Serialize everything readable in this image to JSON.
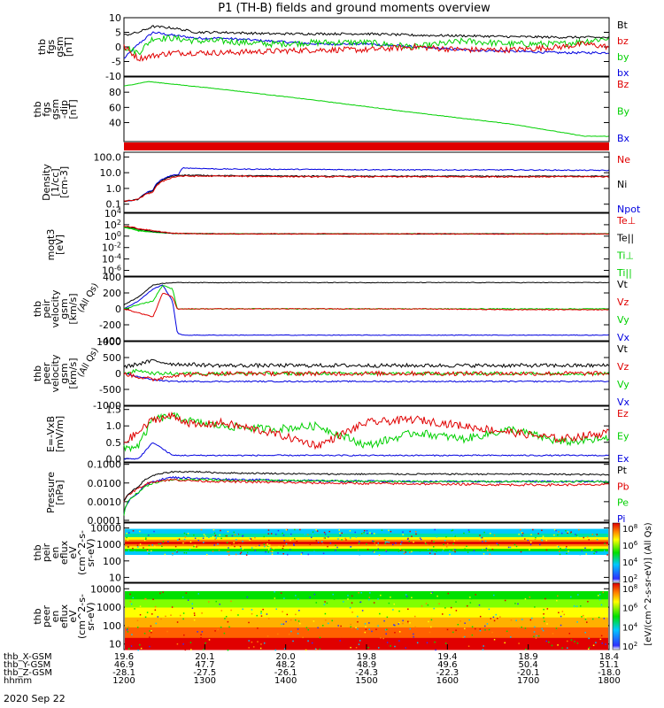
{
  "title": "P1  (TH-B) fields and ground moments overview",
  "date_label": "2020 Sep 22",
  "colors": {
    "black": "#000000",
    "red": "#e00000",
    "green": "#00d000",
    "blue": "#0000e0"
  },
  "chart_data": [
    {
      "type": "line",
      "ylabel_lines": [
        "thb",
        "fgs",
        "gsm",
        "[nT]"
      ],
      "ylim": [
        -10,
        10
      ],
      "yscale": "linear",
      "yticks": [
        {
          "v": 10,
          "label": "10"
        },
        {
          "v": 5,
          "label": "5"
        },
        {
          "v": 0,
          "label": "0"
        },
        {
          "v": -5,
          "label": "-5"
        },
        {
          "v": -10,
          "label": "-10"
        }
      ],
      "x": [
        0,
        0.03,
        0.06,
        0.1,
        0.15,
        0.2,
        0.3,
        0.4,
        0.5,
        0.6,
        0.7,
        0.8,
        0.9,
        0.95,
        1.0
      ],
      "series": [
        {
          "name": "Bt",
          "color": "#000000",
          "noise": 0.4,
          "values": [
            4,
            5,
            7,
            6.5,
            5,
            5,
            4.5,
            4.5,
            4.5,
            4,
            3.8,
            3.5,
            3.3,
            3.3,
            3.2
          ]
        },
        {
          "name": "bz",
          "color": "#e00000",
          "noise": 1.0,
          "values": [
            0,
            -4,
            -3,
            -2,
            -2,
            -2,
            -1.5,
            -1,
            -1,
            0,
            -1,
            -1,
            0,
            1,
            0
          ]
        },
        {
          "name": "by",
          "color": "#00d000",
          "noise": 1.1,
          "values": [
            0,
            -2,
            3,
            3,
            2,
            2,
            1,
            1.5,
            1.5,
            0,
            2,
            1,
            1,
            2,
            3
          ]
        },
        {
          "name": "bx",
          "color": "#0000e0",
          "noise": 0.4,
          "values": [
            -4,
            1,
            5,
            4,
            3,
            3,
            2,
            1,
            1,
            0,
            -1,
            -1.5,
            -2,
            -2,
            -2
          ]
        }
      ]
    },
    {
      "type": "line",
      "ylabel_lines": [
        "thb",
        "fgs",
        "gsm",
        "-dip",
        "[nT]"
      ],
      "ylim": [
        15,
        100
      ],
      "yscale": "linear",
      "yticks": [
        {
          "v": 80,
          "label": "80"
        },
        {
          "v": 60,
          "label": "60"
        },
        {
          "v": 40,
          "label": "40"
        }
      ],
      "x": [
        0,
        0.05,
        0.2,
        0.4,
        0.6,
        0.8,
        0.95,
        1.0
      ],
      "series": [
        {
          "name": "Bz",
          "color": "#e00000",
          "noise": 0,
          "values": [
            null,
            null,
            null,
            null,
            null,
            null,
            null,
            null
          ],
          "legend_only": true
        },
        {
          "name": "By",
          "color": "#00d000",
          "noise": 0.3,
          "values": [
            88,
            94,
            84,
            69,
            53,
            38,
            22,
            22
          ]
        },
        {
          "name": "Bx",
          "color": "#0000e0",
          "noise": 0,
          "values": [
            null,
            null,
            null,
            null,
            null,
            null,
            null,
            null
          ],
          "legend_only": true
        }
      ]
    },
    {
      "type": "line",
      "ylabel_lines": [
        "Density",
        "[1/cc]",
        "[cm-3]"
      ],
      "ylim": [
        0.03,
        200
      ],
      "yscale": "log",
      "yticks": [
        {
          "v": 100,
          "label": "100.0"
        },
        {
          "v": 10,
          "label": "10.0"
        },
        {
          "v": 1,
          "label": "1.0"
        },
        {
          "v": 0.1,
          "label": "0.1"
        }
      ],
      "x": [
        0,
        0.03,
        0.06,
        0.1,
        0.113,
        0.12,
        0.2,
        0.4,
        0.6,
        0.8,
        1.0
      ],
      "series": [
        {
          "name": "Ne",
          "color": "#e00000",
          "noise": 0.04,
          "values": [
            0.15,
            0.2,
            0.6,
            5,
            6,
            6,
            6,
            5.5,
            5.5,
            5.5,
            5.5
          ]
        },
        {
          "name": "Ni",
          "color": "#000000",
          "noise": 0.03,
          "values": [
            0.15,
            0.2,
            0.7,
            6,
            7,
            7,
            6.5,
            6,
            6,
            6,
            6
          ]
        },
        {
          "name": "Npot",
          "color": "#0000e0",
          "noise": 0.03,
          "values": [
            0.15,
            0.2,
            0.8,
            7,
            7,
            20,
            17,
            16,
            15,
            15,
            14
          ]
        }
      ]
    },
    {
      "type": "line",
      "ylabel_lines": [
        "moqt3",
        "[eV]"
      ],
      "ylim": [
        1e-07,
        10000
      ],
      "yscale": "log",
      "yticks": [
        {
          "v": 10000,
          "label": "10^4"
        },
        {
          "v": 100,
          "label": "10^2"
        },
        {
          "v": 1,
          "label": "10^0"
        },
        {
          "v": 0.01,
          "label": "10^-2"
        },
        {
          "v": 0.0001,
          "label": "10^-4"
        },
        {
          "v": 1e-06,
          "label": "10^-6"
        }
      ],
      "x": [
        0,
        0.03,
        0.06,
        0.1,
        0.2,
        0.5,
        1.0
      ],
      "series": [
        {
          "name": "Te⊥",
          "color": "#e00000",
          "noise": 0.08,
          "values": [
            60,
            20,
            8,
            3,
            2.5,
            2.5,
            2.5
          ]
        },
        {
          "name": "Te||",
          "color": "#000000",
          "noise": 0.05,
          "values": [
            50,
            15,
            6,
            3,
            2.5,
            2.5,
            2.5
          ]
        },
        {
          "name": "Ti⊥",
          "color": "#00d000",
          "noise": 0.05,
          "values": [
            40,
            10,
            5,
            3,
            2.5,
            2.5,
            2.5
          ]
        },
        {
          "name": "Ti||",
          "color": "#00d000",
          "noise": 0.05,
          "values": [
            30,
            8,
            5,
            3,
            2.5,
            2.5,
            2.5
          ]
        }
      ]
    },
    {
      "type": "line",
      "ylabel_lines": [
        "thb",
        "peir",
        "velocity",
        "gsm",
        "[km/s]"
      ],
      "extra_label": "(All Qs)",
      "ylim": [
        -400,
        400
      ],
      "yscale": "linear",
      "yticks": [
        {
          "v": 400,
          "label": "400"
        },
        {
          "v": 200,
          "label": "200"
        },
        {
          "v": 0,
          "label": "0"
        },
        {
          "v": -200,
          "label": "-200"
        },
        {
          "v": -400,
          "label": "-400"
        }
      ],
      "x": [
        0,
        0.03,
        0.06,
        0.08,
        0.1,
        0.11,
        0.12,
        0.2,
        0.4,
        0.6,
        0.8,
        1.0
      ],
      "series": [
        {
          "name": "Vt",
          "color": "#000000",
          "noise": 4,
          "values": [
            50,
            150,
            300,
            320,
            330,
            330,
            330,
            330,
            330,
            330,
            330,
            330
          ]
        },
        {
          "name": "Vz",
          "color": "#e00000",
          "noise": 5,
          "values": [
            0,
            -50,
            -100,
            200,
            150,
            0,
            0,
            0,
            0,
            0,
            -10,
            -10
          ]
        },
        {
          "name": "Vy",
          "color": "#00d000",
          "noise": 6,
          "values": [
            0,
            50,
            100,
            300,
            250,
            0,
            0,
            0,
            0,
            0,
            0,
            0
          ]
        },
        {
          "name": "Vx",
          "color": "#0000e0",
          "noise": 4,
          "values": [
            0,
            100,
            250,
            300,
            100,
            -300,
            -330,
            -330,
            -330,
            -330,
            -330,
            -330
          ]
        }
      ]
    },
    {
      "type": "line",
      "ylabel_lines": [
        "thb",
        "peer",
        "velocity",
        "gsm",
        "[km/s]"
      ],
      "extra_label": "(All Qs)",
      "ylim": [
        -1000,
        1000
      ],
      "yscale": "linear",
      "yticks": [
        {
          "v": 1000,
          "label": "1000"
        },
        {
          "v": 500,
          "label": "500"
        },
        {
          "v": 0,
          "label": "0"
        },
        {
          "v": -500,
          "label": "-500"
        },
        {
          "v": -1000,
          "label": "-1000"
        }
      ],
      "x": [
        0,
        0.03,
        0.06,
        0.1,
        0.2,
        0.4,
        0.6,
        0.8,
        1.0
      ],
      "series": [
        {
          "name": "Vt",
          "color": "#000000",
          "noise": 60,
          "values": [
            200,
            300,
            400,
            300,
            250,
            250,
            250,
            250,
            250
          ]
        },
        {
          "name": "Vz",
          "color": "#e00000",
          "noise": 70,
          "values": [
            0,
            -100,
            -200,
            -50,
            0,
            0,
            0,
            0,
            0
          ]
        },
        {
          "name": "Vy",
          "color": "#00d000",
          "noise": 50,
          "values": [
            0,
            100,
            0,
            0,
            0,
            0,
            0,
            0,
            0
          ]
        },
        {
          "name": "Vx",
          "color": "#0000e0",
          "noise": 20,
          "values": [
            0,
            -100,
            -200,
            -250,
            -250,
            -250,
            -250,
            -250,
            -250
          ]
        }
      ]
    },
    {
      "type": "line",
      "ylabel_lines": [
        "E=-VxB",
        "[mV/m]"
      ],
      "ylim": [
        -0.1,
        1.6
      ],
      "yscale": "linear",
      "yticks": [
        {
          "v": 1.5,
          "label": "1.5"
        },
        {
          "v": 1.0,
          "label": "1.0"
        },
        {
          "v": 0.5,
          "label": "0.5"
        },
        {
          "v": 0,
          "label": "0.0"
        }
      ],
      "x": [
        0,
        0.03,
        0.06,
        0.1,
        0.15,
        0.2,
        0.3,
        0.4,
        0.5,
        0.6,
        0.7,
        0.8,
        0.9,
        1.0
      ],
      "series": [
        {
          "name": "Ez",
          "color": "#e00000",
          "noise": 0.12,
          "values": [
            0.5,
            0.8,
            1.2,
            1.3,
            1.0,
            1.1,
            0.8,
            0.4,
            1.1,
            1.2,
            1.0,
            0.8,
            0.6,
            0.8
          ]
        },
        {
          "name": "Ey",
          "color": "#00d000",
          "noise": 0.12,
          "values": [
            0.3,
            0.4,
            1.2,
            1.3,
            1.1,
            1.0,
            0.9,
            1.0,
            0.4,
            0.8,
            0.6,
            0.9,
            0.5,
            0.6
          ]
        },
        {
          "name": "Ex",
          "color": "#0000e0",
          "noise": 0.02,
          "values": [
            0,
            0,
            0.5,
            0.1,
            0.1,
            0.1,
            0.1,
            0.1,
            0.1,
            0.1,
            0.1,
            0.1,
            0.1,
            0.1
          ]
        }
      ]
    },
    {
      "type": "line",
      "ylabel_lines": [
        "Pressure",
        "[nPa]"
      ],
      "ylim": [
        8e-05,
        0.12
      ],
      "yscale": "log",
      "yticks": [
        {
          "v": 0.1,
          "label": "0.1000"
        },
        {
          "v": 0.01,
          "label": "0.0100"
        },
        {
          "v": 0.001,
          "label": "0.0010"
        },
        {
          "v": 0.0001,
          "label": "0.0001"
        }
      ],
      "x": [
        0,
        0.03,
        0.06,
        0.1,
        0.15,
        0.2,
        0.4,
        0.6,
        0.8,
        1.0
      ],
      "series": [
        {
          "name": "Pt",
          "color": "#000000",
          "noise": 0.04,
          "values": [
            0.001,
            0.006,
            0.025,
            0.04,
            0.04,
            0.035,
            0.03,
            0.03,
            0.03,
            0.028
          ]
        },
        {
          "name": "Pb",
          "color": "#e00000",
          "noise": 0.06,
          "values": [
            0.001,
            0.005,
            0.012,
            0.015,
            0.013,
            0.012,
            0.01,
            0.009,
            0.008,
            0.008
          ]
        },
        {
          "name": "Pe",
          "color": "#00d000",
          "noise": 0.05,
          "values": [
            0.0002,
            0.003,
            0.01,
            0.015,
            0.015,
            0.014,
            0.013,
            0.012,
            0.012,
            0.012
          ]
        },
        {
          "name": "Pi",
          "color": "#0000e0",
          "noise": 0.05,
          "values": [
            0.0002,
            0.003,
            0.012,
            0.02,
            0.018,
            0.016,
            0.013,
            0.012,
            0.012,
            0.012
          ]
        }
      ]
    },
    {
      "type": "heatmap",
      "ylabel_lines": [
        "thb",
        "peir",
        "en",
        "eflux",
        "eV",
        "(cm^2-s-",
        "sr-eV)"
      ],
      "ylim": [
        5,
        20000
      ],
      "yscale": "log",
      "yticks": [
        {
          "v": 10000,
          "label": "10000"
        },
        {
          "v": 1000,
          "label": "1000"
        },
        {
          "v": 100,
          "label": "100"
        },
        {
          "v": 10,
          "label": "10"
        }
      ],
      "band_top": 0.9,
      "band_bottom": 0.47,
      "colorbar_ticks": [
        "10^8",
        "10^6",
        "10^4",
        "10^2"
      ]
    },
    {
      "type": "heatmap",
      "ylabel_lines": [
        "thb",
        "peer",
        "en",
        "eflux",
        "eV",
        "(cm^2-s-",
        "sr-eV)"
      ],
      "ylim": [
        5,
        20000
      ],
      "yscale": "log",
      "yticks": [
        {
          "v": 10000,
          "label": "10000"
        },
        {
          "v": 1000,
          "label": "1000"
        },
        {
          "v": 100,
          "label": "100"
        },
        {
          "v": 10,
          "label": "10"
        }
      ],
      "band_top": 0.88,
      "band_bottom": 0.0,
      "colorbar_ticks": [
        "10^8",
        "10^6",
        "10^4",
        "10^2"
      ]
    }
  ],
  "colorbar_label": "[eV/(cm^2-s-sr-eV)] (All Qs)",
  "x_axis": {
    "rows": [
      {
        "label": "thb_X-GSM",
        "values": [
          "19.6",
          "20.1",
          "20.0",
          "19.8",
          "19.4",
          "18.9",
          "18.4"
        ]
      },
      {
        "label": "thb_Y-GSM",
        "values": [
          "46.9",
          "47.7",
          "48.2",
          "48.9",
          "49.6",
          "50.4",
          "51.1"
        ]
      },
      {
        "label": "thb_Z-GSM",
        "values": [
          "-28.1",
          "-27.5",
          "-26.1",
          "-24.3",
          "-22.3",
          "-20.1",
          "-18.0"
        ]
      },
      {
        "label": "hhmm",
        "values": [
          "1200",
          "1300",
          "1400",
          "1500",
          "1600",
          "1700",
          "1800"
        ]
      }
    ]
  }
}
